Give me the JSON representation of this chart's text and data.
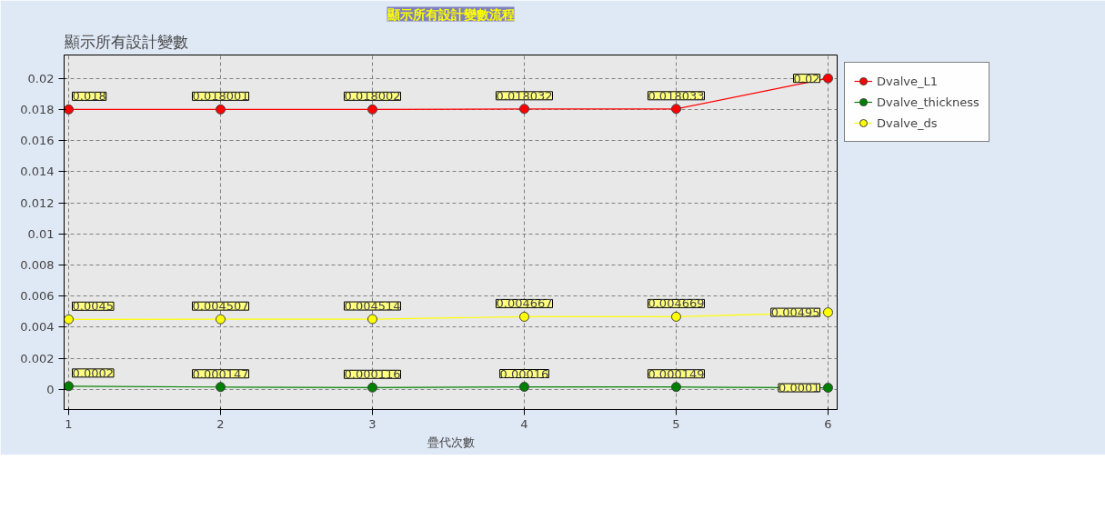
{
  "chart_data": {
    "type": "line",
    "title": "顯示所有設計變數流程",
    "xlabel": "疊代次數",
    "annotations": [
      "顯示所有設計變數"
    ],
    "x": [
      1,
      2,
      3,
      4,
      5,
      6
    ],
    "series": [
      {
        "name": "Dvalve_L1",
        "color": "#ff0000",
        "values": [
          0.018,
          0.018001,
          0.018002,
          0.018032,
          0.018033,
          0.02
        ]
      },
      {
        "name": "Dvalve_thickness",
        "color": "#008000",
        "values": [
          0.0002,
          0.000147,
          0.000116,
          0.00016,
          0.000149,
          0.0001
        ]
      },
      {
        "name": "Dvalve_ds",
        "color": "#ffff00",
        "values": [
          0.0045,
          0.004507,
          0.004514,
          0.004667,
          0.004669,
          0.00495
        ]
      }
    ],
    "xlim": [
      0.97,
      6.06
    ],
    "ylim": [
      -0.0013,
      0.0215
    ],
    "xticks": [
      1,
      2,
      3,
      4,
      5,
      6
    ],
    "yticks": [
      0,
      0.002,
      0.004,
      0.006,
      0.008,
      0.01,
      0.012,
      0.014,
      0.016,
      0.018,
      0.02
    ],
    "grid": true,
    "legend": "right",
    "marker": "circle",
    "line_style": "solid",
    "data_labels": true
  }
}
